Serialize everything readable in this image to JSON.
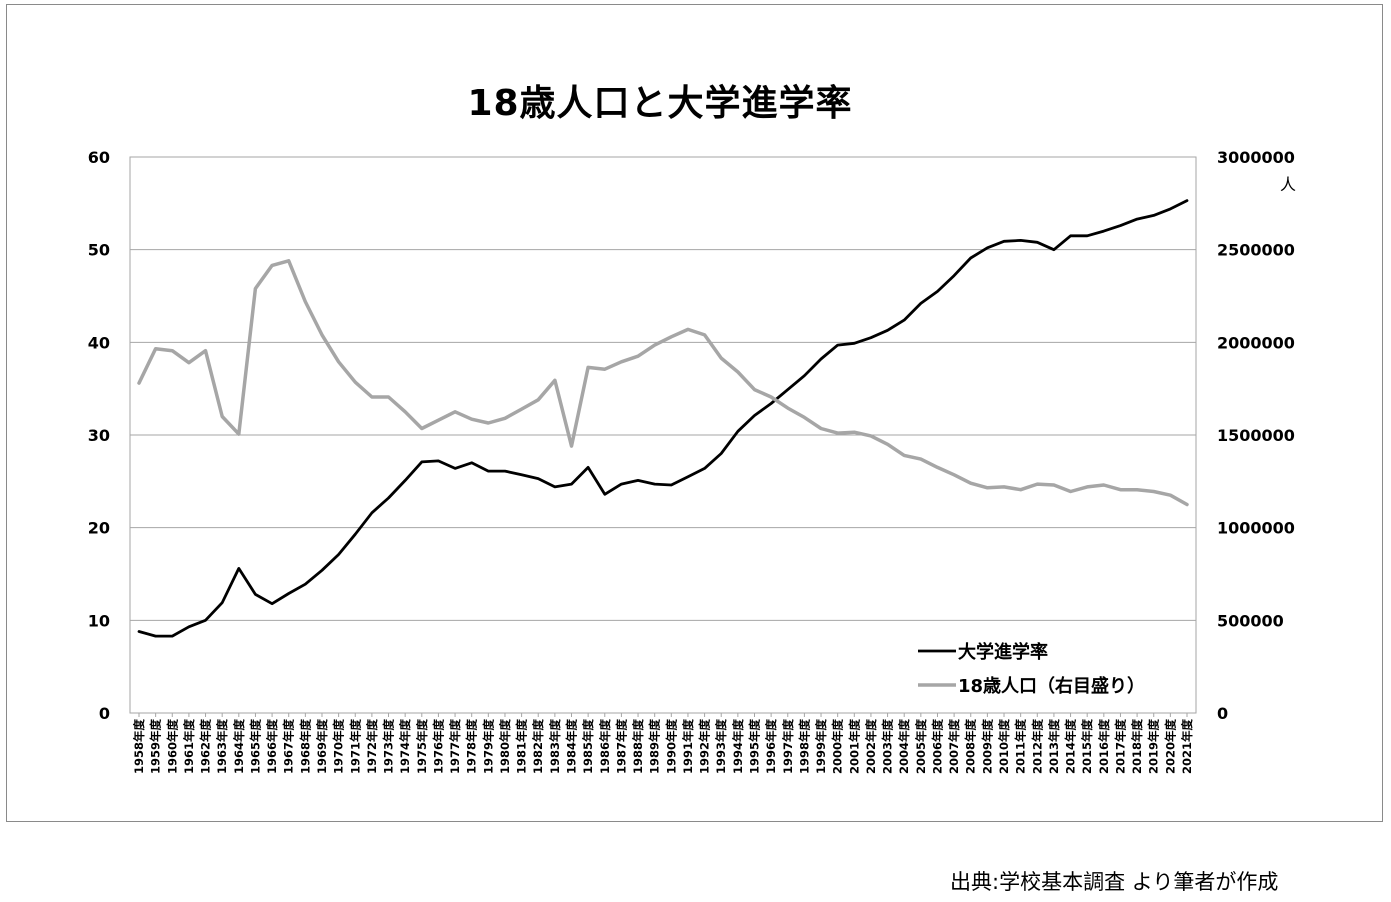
{
  "chart_data": {
    "type": "line",
    "title": "18歳人口と大学進学率",
    "source": "出典:学校基本調査 より筆者が作成",
    "y2_unit": "人",
    "y_ticks": [
      "0",
      "10",
      "20",
      "30",
      "40",
      "50",
      "60"
    ],
    "y2_ticks": [
      "0",
      "500000",
      "1000000",
      "1500000",
      "2000000",
      "2500000",
      "3000000"
    ],
    "ylim": [
      0,
      60
    ],
    "y2lim": [
      0,
      3000000
    ],
    "grid": true,
    "legend_position": "bottom-right",
    "categories": [
      "1958年度",
      "1959年度",
      "1960年度",
      "1961年度",
      "1962年度",
      "1963年度",
      "1964年度",
      "1965年度",
      "1966年度",
      "1967年度",
      "1968年度",
      "1969年度",
      "1970年度",
      "1971年度",
      "1972年度",
      "1973年度",
      "1974年度",
      "1975年度",
      "1976年度",
      "1977年度",
      "1978年度",
      "1979年度",
      "1980年度",
      "1981年度",
      "1982年度",
      "1983年度",
      "1984年度",
      "1985年度",
      "1986年度",
      "1987年度",
      "1988年度",
      "1989年度",
      "1990年度",
      "1991年度",
      "1992年度",
      "1993年度",
      "1994年度",
      "1995年度",
      "1996年度",
      "1997年度",
      "1998年度",
      "1999年度",
      "2000年度",
      "2001年度",
      "2002年度",
      "2003年度",
      "2004年度",
      "2005年度",
      "2006年度",
      "2007年度",
      "2008年度",
      "2009年度",
      "2010年度",
      "2011年度",
      "2012年度",
      "2013年度",
      "2014年度",
      "2015年度",
      "2016年度",
      "2017年度",
      "2018年度",
      "2019年度",
      "2020年度",
      "2021年度"
    ],
    "series": [
      {
        "name": "大学進学率",
        "axis": "left",
        "color": "#000000",
        "values": [
          8.8,
          8.3,
          8.3,
          9.3,
          10.0,
          11.9,
          15.6,
          12.8,
          11.8,
          12.9,
          13.9,
          15.4,
          17.1,
          19.3,
          21.6,
          23.2,
          25.1,
          27.1,
          27.2,
          26.4,
          27.0,
          26.1,
          26.1,
          25.7,
          25.3,
          24.4,
          24.7,
          26.5,
          23.6,
          24.7,
          25.1,
          24.7,
          24.6,
          25.5,
          26.4,
          28.0,
          30.4,
          32.1,
          33.4,
          34.9,
          36.4,
          38.2,
          39.7,
          39.9,
          40.5,
          41.3,
          42.4,
          44.2,
          45.5,
          47.2,
          49.1,
          50.2,
          50.9,
          51.0,
          50.8,
          50.0,
          51.5,
          51.5,
          52.0,
          52.6,
          53.3,
          53.7,
          54.4,
          55.3
        ]
      },
      {
        "name": "18歳人口（右目盛り）",
        "axis": "right",
        "color": "#a6a6a6",
        "values": [
          1780000,
          1965000,
          1955000,
          1890000,
          1955000,
          1600000,
          1505000,
          2290000,
          2415000,
          2440000,
          2220000,
          2040000,
          1895000,
          1785000,
          1705000,
          1705000,
          1625000,
          1535000,
          1580000,
          1625000,
          1585000,
          1565000,
          1590000,
          1640000,
          1690000,
          1795000,
          1440000,
          1865000,
          1855000,
          1895000,
          1925000,
          1985000,
          2030000,
          2070000,
          2040000,
          1915000,
          1840000,
          1745000,
          1705000,
          1645000,
          1595000,
          1535000,
          1510000,
          1515000,
          1495000,
          1450000,
          1390000,
          1370000,
          1325000,
          1285000,
          1240000,
          1215000,
          1220000,
          1205000,
          1235000,
          1230000,
          1195000,
          1220000,
          1230000,
          1205000,
          1205000,
          1195000,
          1175000,
          1125000
        ]
      }
    ]
  }
}
